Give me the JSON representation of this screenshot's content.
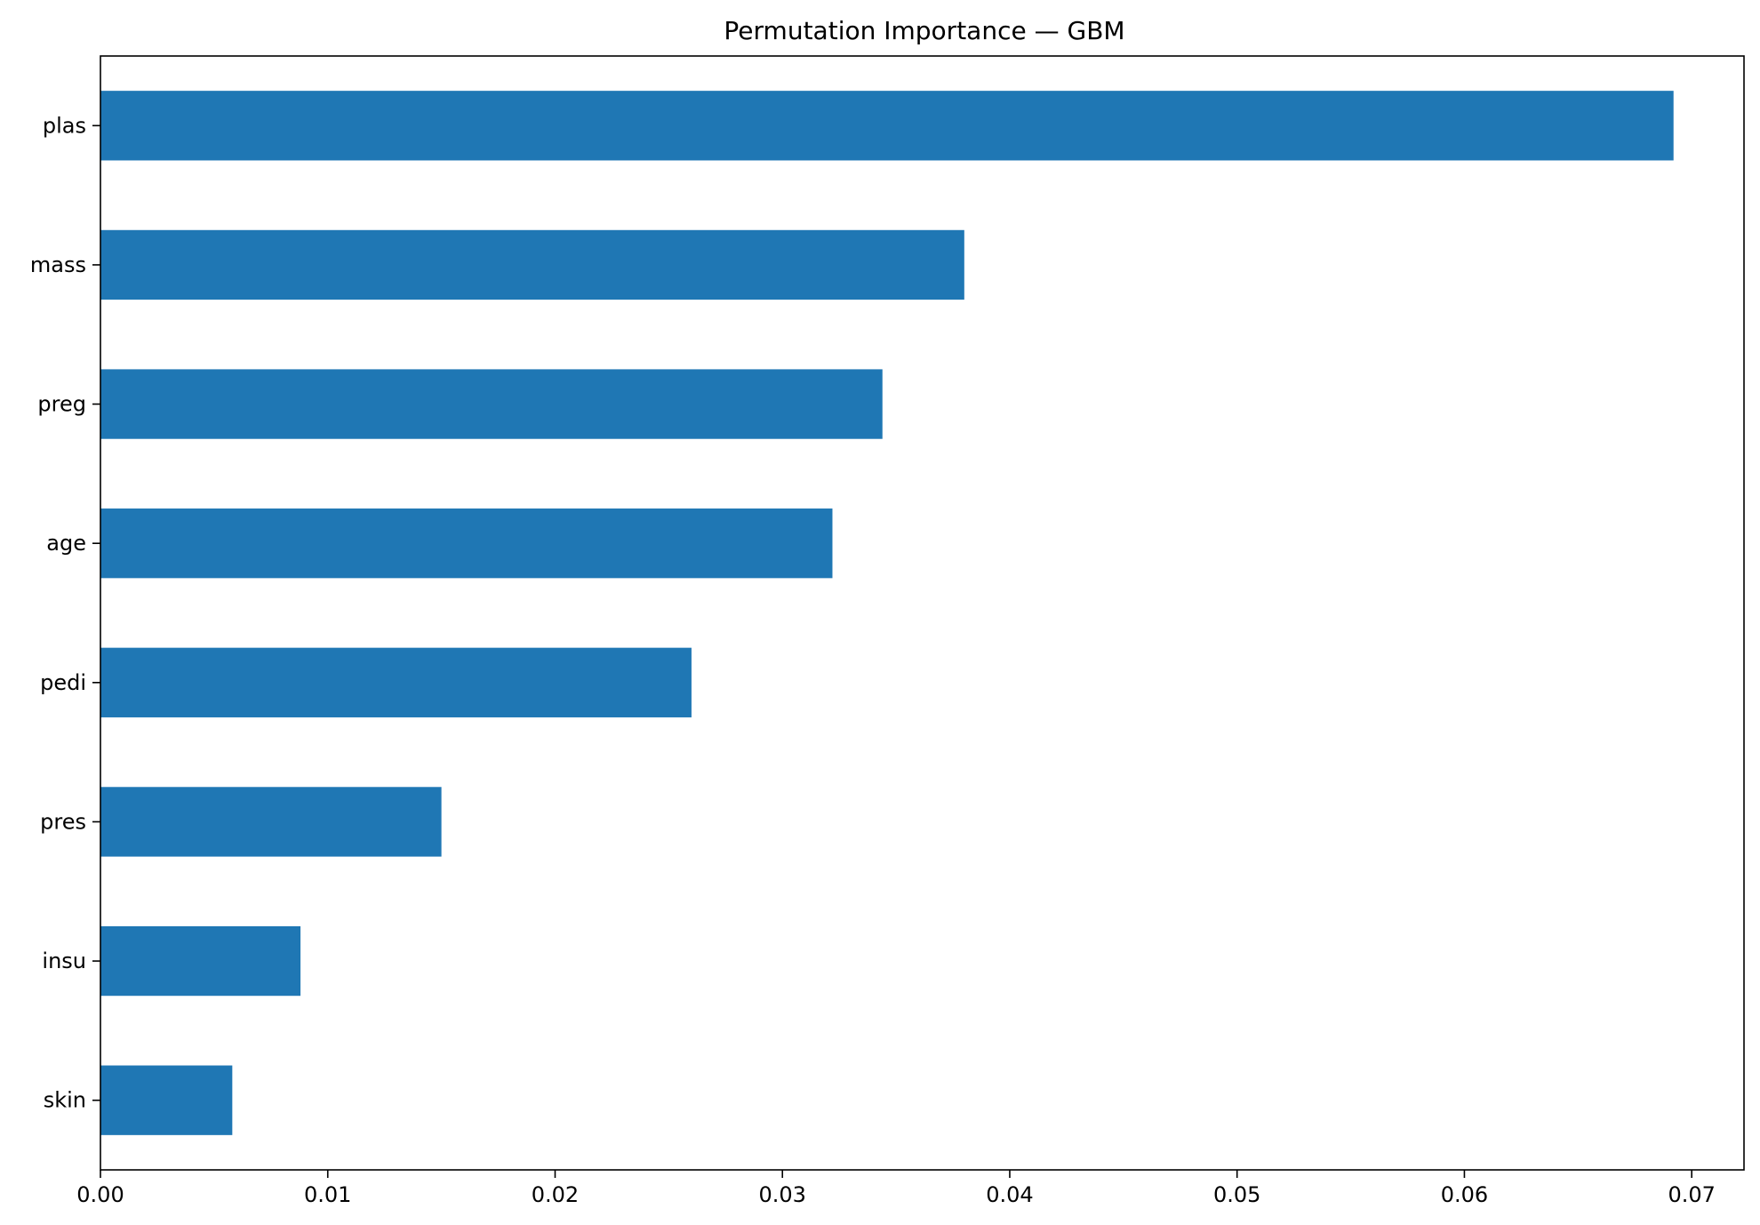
{
  "chart_data": {
    "type": "bar",
    "orientation": "horizontal",
    "title": "Permutation Importance — GBM",
    "xlabel": "",
    "ylabel": "",
    "categories": [
      "plas",
      "mass",
      "preg",
      "age",
      "pedi",
      "pres",
      "insu",
      "skin"
    ],
    "values": [
      0.0692,
      0.038,
      0.0344,
      0.0322,
      0.026,
      0.015,
      0.0088,
      0.0058
    ],
    "xlim": [
      0.0,
      0.0723
    ],
    "xticks": [
      "0.00",
      "0.01",
      "0.02",
      "0.03",
      "0.04",
      "0.05",
      "0.06",
      "0.07"
    ],
    "xtick_values": [
      0.0,
      0.01,
      0.02,
      0.03,
      0.04,
      0.05,
      0.06,
      0.07
    ],
    "grid": false,
    "legend": "none",
    "colors": {
      "bar": "#1f77b4",
      "axis": "#000000",
      "background": "#ffffff"
    }
  }
}
